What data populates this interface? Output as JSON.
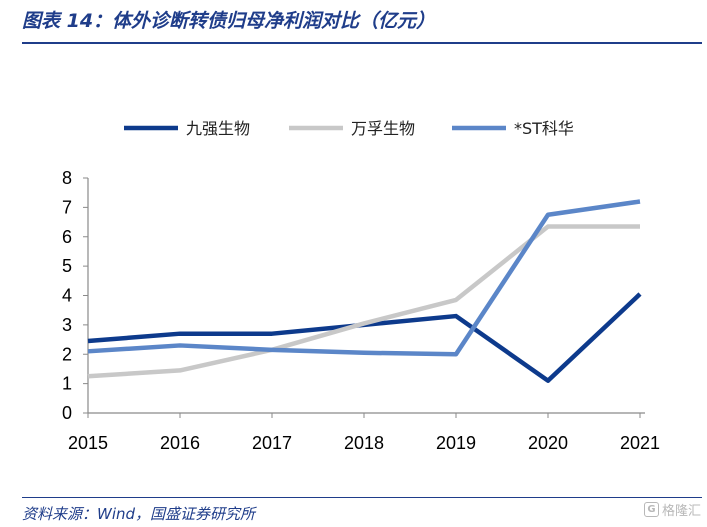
{
  "header": {
    "title": "图表 14：体外诊断转债归母净利润对比（亿元）"
  },
  "footer": {
    "source": "资料来源：Wind，国盛证券研究所",
    "watermark_text": "格隆汇"
  },
  "chart_data": {
    "type": "line",
    "title": "",
    "xlabel": "",
    "ylabel": "",
    "x": [
      "2015",
      "2016",
      "2017",
      "2018",
      "2019",
      "2020",
      "2021"
    ],
    "y_ticks": [
      "0",
      "1",
      "2",
      "3",
      "4",
      "5",
      "6",
      "7",
      "8"
    ],
    "ylim": [
      0,
      8
    ],
    "grid": false,
    "legend_position": "top",
    "series": [
      {
        "name": "九强生物",
        "color": "#0d3a8c",
        "values": [
          2.45,
          2.7,
          2.7,
          3.0,
          3.3,
          1.1,
          4.05
        ]
      },
      {
        "name": "万孚生物",
        "color": "#c8c8c8",
        "values": [
          1.25,
          1.45,
          2.15,
          3.05,
          3.85,
          6.35,
          6.35
        ]
      },
      {
        "name": "*ST科华",
        "color": "#5b86c8",
        "values": [
          2.1,
          2.3,
          2.15,
          2.05,
          2.0,
          6.75,
          7.2
        ]
      }
    ]
  }
}
